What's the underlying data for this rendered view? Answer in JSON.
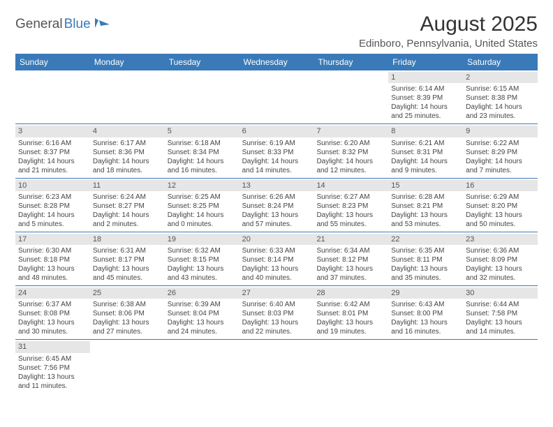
{
  "brand": {
    "part1": "General",
    "part2": "Blue"
  },
  "title": "August 2025",
  "location": "Edinboro, Pennsylvania, United States",
  "colors": {
    "header_bg": "#3a7ab8",
    "header_text": "#ffffff",
    "daynum_bg": "#e6e6e6",
    "text": "#444444",
    "border": "#3a7ab8"
  },
  "day_names": [
    "Sunday",
    "Monday",
    "Tuesday",
    "Wednesday",
    "Thursday",
    "Friday",
    "Saturday"
  ],
  "weeks": [
    [
      {
        "n": "",
        "sr": "",
        "ss": "",
        "dl": ""
      },
      {
        "n": "",
        "sr": "",
        "ss": "",
        "dl": ""
      },
      {
        "n": "",
        "sr": "",
        "ss": "",
        "dl": ""
      },
      {
        "n": "",
        "sr": "",
        "ss": "",
        "dl": ""
      },
      {
        "n": "",
        "sr": "",
        "ss": "",
        "dl": ""
      },
      {
        "n": "1",
        "sr": "Sunrise: 6:14 AM",
        "ss": "Sunset: 8:39 PM",
        "dl": "Daylight: 14 hours and 25 minutes."
      },
      {
        "n": "2",
        "sr": "Sunrise: 6:15 AM",
        "ss": "Sunset: 8:38 PM",
        "dl": "Daylight: 14 hours and 23 minutes."
      }
    ],
    [
      {
        "n": "3",
        "sr": "Sunrise: 6:16 AM",
        "ss": "Sunset: 8:37 PM",
        "dl": "Daylight: 14 hours and 21 minutes."
      },
      {
        "n": "4",
        "sr": "Sunrise: 6:17 AM",
        "ss": "Sunset: 8:36 PM",
        "dl": "Daylight: 14 hours and 18 minutes."
      },
      {
        "n": "5",
        "sr": "Sunrise: 6:18 AM",
        "ss": "Sunset: 8:34 PM",
        "dl": "Daylight: 14 hours and 16 minutes."
      },
      {
        "n": "6",
        "sr": "Sunrise: 6:19 AM",
        "ss": "Sunset: 8:33 PM",
        "dl": "Daylight: 14 hours and 14 minutes."
      },
      {
        "n": "7",
        "sr": "Sunrise: 6:20 AM",
        "ss": "Sunset: 8:32 PM",
        "dl": "Daylight: 14 hours and 12 minutes."
      },
      {
        "n": "8",
        "sr": "Sunrise: 6:21 AM",
        "ss": "Sunset: 8:31 PM",
        "dl": "Daylight: 14 hours and 9 minutes."
      },
      {
        "n": "9",
        "sr": "Sunrise: 6:22 AM",
        "ss": "Sunset: 8:29 PM",
        "dl": "Daylight: 14 hours and 7 minutes."
      }
    ],
    [
      {
        "n": "10",
        "sr": "Sunrise: 6:23 AM",
        "ss": "Sunset: 8:28 PM",
        "dl": "Daylight: 14 hours and 5 minutes."
      },
      {
        "n": "11",
        "sr": "Sunrise: 6:24 AM",
        "ss": "Sunset: 8:27 PM",
        "dl": "Daylight: 14 hours and 2 minutes."
      },
      {
        "n": "12",
        "sr": "Sunrise: 6:25 AM",
        "ss": "Sunset: 8:25 PM",
        "dl": "Daylight: 14 hours and 0 minutes."
      },
      {
        "n": "13",
        "sr": "Sunrise: 6:26 AM",
        "ss": "Sunset: 8:24 PM",
        "dl": "Daylight: 13 hours and 57 minutes."
      },
      {
        "n": "14",
        "sr": "Sunrise: 6:27 AM",
        "ss": "Sunset: 8:23 PM",
        "dl": "Daylight: 13 hours and 55 minutes."
      },
      {
        "n": "15",
        "sr": "Sunrise: 6:28 AM",
        "ss": "Sunset: 8:21 PM",
        "dl": "Daylight: 13 hours and 53 minutes."
      },
      {
        "n": "16",
        "sr": "Sunrise: 6:29 AM",
        "ss": "Sunset: 8:20 PM",
        "dl": "Daylight: 13 hours and 50 minutes."
      }
    ],
    [
      {
        "n": "17",
        "sr": "Sunrise: 6:30 AM",
        "ss": "Sunset: 8:18 PM",
        "dl": "Daylight: 13 hours and 48 minutes."
      },
      {
        "n": "18",
        "sr": "Sunrise: 6:31 AM",
        "ss": "Sunset: 8:17 PM",
        "dl": "Daylight: 13 hours and 45 minutes."
      },
      {
        "n": "19",
        "sr": "Sunrise: 6:32 AM",
        "ss": "Sunset: 8:15 PM",
        "dl": "Daylight: 13 hours and 43 minutes."
      },
      {
        "n": "20",
        "sr": "Sunrise: 6:33 AM",
        "ss": "Sunset: 8:14 PM",
        "dl": "Daylight: 13 hours and 40 minutes."
      },
      {
        "n": "21",
        "sr": "Sunrise: 6:34 AM",
        "ss": "Sunset: 8:12 PM",
        "dl": "Daylight: 13 hours and 37 minutes."
      },
      {
        "n": "22",
        "sr": "Sunrise: 6:35 AM",
        "ss": "Sunset: 8:11 PM",
        "dl": "Daylight: 13 hours and 35 minutes."
      },
      {
        "n": "23",
        "sr": "Sunrise: 6:36 AM",
        "ss": "Sunset: 8:09 PM",
        "dl": "Daylight: 13 hours and 32 minutes."
      }
    ],
    [
      {
        "n": "24",
        "sr": "Sunrise: 6:37 AM",
        "ss": "Sunset: 8:08 PM",
        "dl": "Daylight: 13 hours and 30 minutes."
      },
      {
        "n": "25",
        "sr": "Sunrise: 6:38 AM",
        "ss": "Sunset: 8:06 PM",
        "dl": "Daylight: 13 hours and 27 minutes."
      },
      {
        "n": "26",
        "sr": "Sunrise: 6:39 AM",
        "ss": "Sunset: 8:04 PM",
        "dl": "Daylight: 13 hours and 24 minutes."
      },
      {
        "n": "27",
        "sr": "Sunrise: 6:40 AM",
        "ss": "Sunset: 8:03 PM",
        "dl": "Daylight: 13 hours and 22 minutes."
      },
      {
        "n": "28",
        "sr": "Sunrise: 6:42 AM",
        "ss": "Sunset: 8:01 PM",
        "dl": "Daylight: 13 hours and 19 minutes."
      },
      {
        "n": "29",
        "sr": "Sunrise: 6:43 AM",
        "ss": "Sunset: 8:00 PM",
        "dl": "Daylight: 13 hours and 16 minutes."
      },
      {
        "n": "30",
        "sr": "Sunrise: 6:44 AM",
        "ss": "Sunset: 7:58 PM",
        "dl": "Daylight: 13 hours and 14 minutes."
      }
    ],
    [
      {
        "n": "31",
        "sr": "Sunrise: 6:45 AM",
        "ss": "Sunset: 7:56 PM",
        "dl": "Daylight: 13 hours and 11 minutes."
      },
      {
        "n": "",
        "sr": "",
        "ss": "",
        "dl": ""
      },
      {
        "n": "",
        "sr": "",
        "ss": "",
        "dl": ""
      },
      {
        "n": "",
        "sr": "",
        "ss": "",
        "dl": ""
      },
      {
        "n": "",
        "sr": "",
        "ss": "",
        "dl": ""
      },
      {
        "n": "",
        "sr": "",
        "ss": "",
        "dl": ""
      },
      {
        "n": "",
        "sr": "",
        "ss": "",
        "dl": ""
      }
    ]
  ]
}
